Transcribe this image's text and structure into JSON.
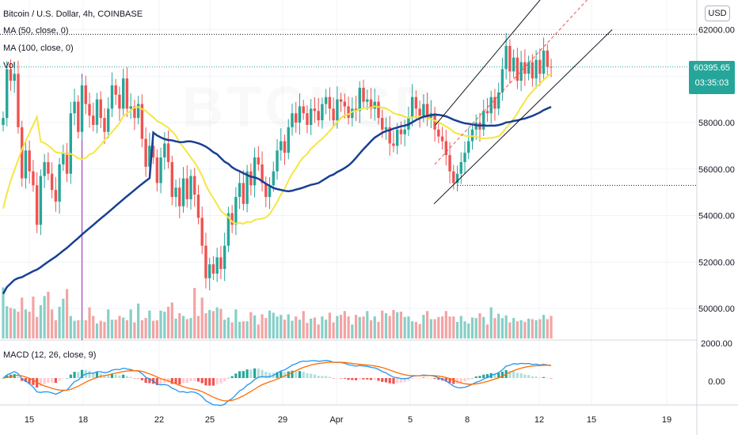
{
  "header": {
    "title": "Bitcoin / U.S. Dollar, 4h, COINBASE",
    "ma50": "MA (50, close, 0)",
    "ma100": "MA (100, close, 0)",
    "vol": "Vol",
    "macd": "MACD (12, 26, close, 9)",
    "currency_button": "USD"
  },
  "price_tag": {
    "price": "60395.65",
    "countdown": "03:35:03"
  },
  "colors": {
    "up": "#26a69a",
    "down": "#ef5350",
    "vol_up": "#86cfc7",
    "vol_down": "#f4a3a3",
    "ma50": "#f5e642",
    "ma100": "#1a3f93",
    "macd_line": "#2196f3",
    "signal_line": "#ff6d00",
    "channel": "#131722",
    "midline": "#ef5350",
    "vline": "#9c27b0",
    "dotted": "#131722"
  },
  "chart_data": {
    "type": "candlestick",
    "symbol": "Bitcoin / U.S. Dollar",
    "interval": "4h",
    "exchange": "COINBASE",
    "x_tick_labels": [
      "15",
      "18",
      "22",
      "25",
      "29",
      "Apr",
      "5",
      "8",
      "12",
      "15",
      "19"
    ],
    "price_ticks": [
      "62000.00",
      "60000.00",
      "58000.00",
      "56000.00",
      "54000.00",
      "52000.00",
      "50000.00"
    ],
    "price_range": [
      49500,
      63000
    ],
    "macd_ticks": [
      "2000.00",
      "0.00"
    ],
    "last_price": 60395.65,
    "resistance_level": 61800,
    "support_level": 55300,
    "closes": [
      58200,
      60300,
      59800,
      60100,
      57800,
      55600,
      56800,
      55900,
      55300,
      53600,
      55700,
      56300,
      55800,
      55100,
      54600,
      56200,
      56700,
      55800,
      58400,
      58900,
      57600,
      59600,
      58800,
      58300,
      57900,
      59000,
      58200,
      57600,
      58600,
      59600,
      59200,
      58600,
      59900,
      58600,
      58700,
      58200,
      58800,
      57300,
      56100,
      57000,
      56500,
      55400,
      56500,
      57100,
      56300,
      54800,
      55200,
      54400,
      55600,
      54700,
      55700,
      54900,
      53900,
      52700,
      51300,
      51900,
      51500,
      52200,
      51700,
      52700,
      54100,
      53600,
      54800,
      55400,
      54500,
      55900,
      55300,
      56500,
      56200,
      55400,
      54800,
      55300,
      55900,
      56800,
      57200,
      56700,
      57800,
      58400,
      58000,
      58700,
      58400,
      57900,
      58600,
      58500,
      58100,
      58800,
      59100,
      58600,
      58100,
      59000,
      58900,
      58700,
      58200,
      58600,
      58500,
      59500,
      58900,
      59000,
      58600,
      58900,
      58200,
      57700,
      57800,
      57100,
      57000,
      57700,
      57500,
      57700,
      58200,
      59100,
      58600,
      58300,
      58800,
      58200,
      58400,
      57700,
      57400,
      57200,
      56600,
      55900,
      55400,
      55800,
      56300,
      56700,
      57200,
      57700,
      58000,
      57700,
      58500,
      58400,
      59100,
      58600,
      59300,
      60300,
      61300,
      60200,
      60800,
      59800,
      60600,
      60100,
      60600,
      59900,
      60700,
      60100,
      61100,
      60400,
      60395.65
    ],
    "volumes": [
      0.95,
      0.6,
      0.57,
      0.55,
      0.5,
      0.76,
      0.54,
      0.5,
      0.78,
      0.4,
      0.62,
      0.79,
      0.87,
      0.54,
      0.34,
      0.59,
      0.74,
      0.92,
      0.42,
      0.33,
      0.34,
      0.35,
      0.34,
      0.58,
      0.42,
      0.28,
      0.33,
      0.31,
      0.54,
      0.35,
      0.35,
      0.42,
      0.39,
      0.34,
      0.54,
      0.3,
      0.65,
      0.34,
      0.38,
      0.52,
      0.33,
      0.34,
      0.52,
      0.5,
      0.59,
      0.67,
      0.37,
      0.47,
      0.42,
      0.36,
      0.38,
      0.94,
      0.42,
      0.76,
      0.47,
      0.53,
      0.51,
      0.58,
      0.55,
      0.35,
      0.39,
      0.3,
      0.54,
      0.31,
      0.32,
      0.32,
      0.49,
      0.43,
      0.26,
      0.45,
      0.38,
      0.52,
      0.48,
      0.41,
      0.44,
      0.35,
      0.45,
      0.33,
      0.41,
      0.35,
      0.51,
      0.29,
      0.37,
      0.39,
      0.26,
      0.41,
      0.35,
      0.48,
      0.3,
      0.42,
      0.44,
      0.51,
      0.41,
      0.26,
      0.44,
      0.4,
      0.41,
      0.51,
      0.34,
      0.41,
      0.31,
      0.52,
      0.47,
      0.42,
      0.53,
      0.49,
      0.5,
      0.4,
      0.41,
      0.32,
      0.31,
      0.27,
      0.44,
      0.51,
      0.36,
      0.36,
      0.4,
      0.41,
      0.51,
      0.41,
      0.41,
      0.31,
      0.42,
      0.32,
      0.28,
      0.39,
      0.38,
      0.47,
      0.4,
      0.26,
      0.58,
      0.38,
      0.46,
      0.38,
      0.43,
      0.3,
      0.38,
      0.32,
      0.34,
      0.31,
      0.37,
      0.36,
      0.34,
      0.36,
      0.44,
      0.36,
      0.42
    ]
  }
}
